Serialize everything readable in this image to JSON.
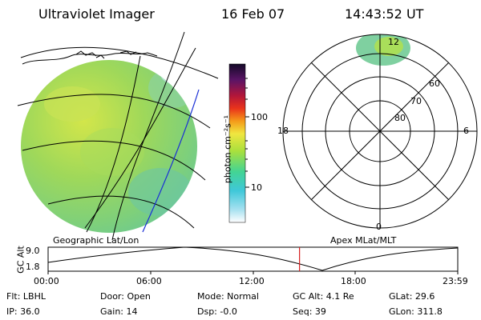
{
  "header": {
    "instrument": "Ultraviolet Imager",
    "date": "16 Feb 07",
    "time": "14:43:52 UT"
  },
  "left_panel": {
    "label": "Geographic Lat/Lon"
  },
  "right_panel": {
    "label": "Apex MLat/MLT",
    "mlt_labels": [
      "12",
      "18",
      "6",
      "0"
    ],
    "lat_labels": [
      "60",
      "70",
      "80"
    ]
  },
  "colorbar": {
    "unit": "photon cm⁻²s⁻¹",
    "ticks": [
      "100",
      "10"
    ],
    "scale": "log"
  },
  "timeline": {
    "ylabel": "GC Alt",
    "ytick_top": "9.0",
    "ytick_bottom": "1.8",
    "xticks": [
      "00:00",
      "06:00",
      "12:00",
      "18:00",
      "23:59"
    ],
    "current_time_hours": 14.73
  },
  "status": {
    "filter": "Flt: LBHL",
    "door": "Door: Open",
    "mode": "Mode: Normal",
    "gc_alt": "GC Alt: 4.1 Re",
    "glat": "GLat:  29.6",
    "ip": "IP: 36.0",
    "gain": "Gain: 14",
    "dsp": "Dsp:   -0.0",
    "seq": "Seq: 39",
    "glon": "GLon: 311.8"
  },
  "colors": {
    "accent_line": "#d61f1f",
    "orbit_line": "#1a2fd6"
  }
}
